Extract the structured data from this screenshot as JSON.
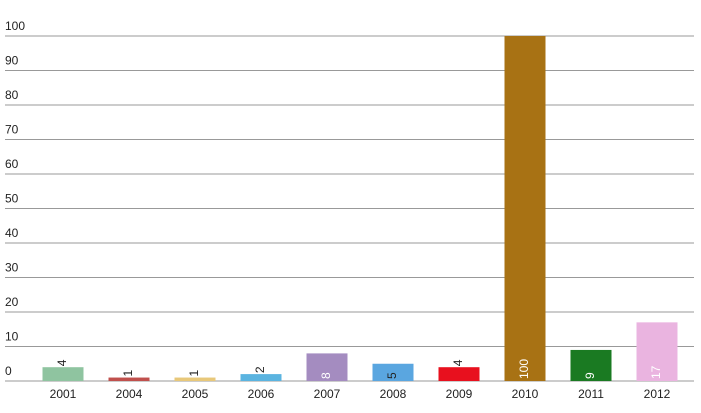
{
  "chart_data": {
    "type": "bar",
    "categories": [
      "2001",
      "2004",
      "2005",
      "2006",
      "2007",
      "2008",
      "2009",
      "2010",
      "2011",
      "2012"
    ],
    "values": [
      4,
      1,
      1,
      2,
      8,
      5,
      4,
      100,
      9,
      17
    ],
    "colors": [
      "#8fc4a0",
      "#c0504d",
      "#e8c87a",
      "#5bb4e0",
      "#a48cc0",
      "#5aa6e0",
      "#e8101e",
      "#a87214",
      "#1a7a22",
      "#eab4e0"
    ],
    "ylim": [
      0,
      100
    ],
    "yticks": [
      0,
      10,
      20,
      30,
      40,
      50,
      60,
      70,
      80,
      90,
      100
    ],
    "grid": true
  }
}
